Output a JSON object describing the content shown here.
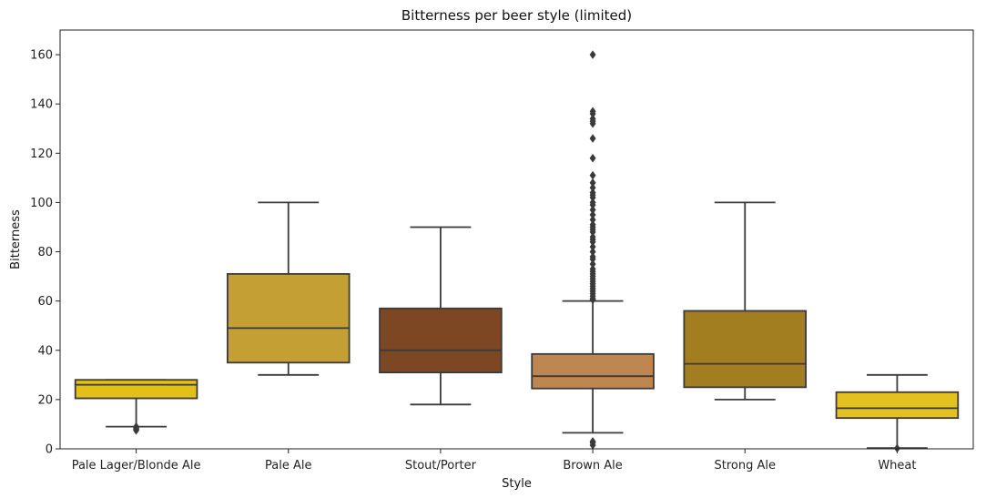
{
  "chart_data": {
    "type": "box",
    "title": "Bitterness per beer style (limited)",
    "xlabel": "Style",
    "ylabel": "Bitterness",
    "ylim": [
      0,
      170
    ],
    "yticks": [
      0,
      20,
      40,
      60,
      80,
      100,
      120,
      140,
      160
    ],
    "grid": false,
    "categories": [
      "Pale Lager/Blonde Ale",
      "Pale Ale",
      "Stout/Porter",
      "Brown Ale",
      "Strong Ale",
      "Wheat"
    ],
    "boxes": [
      {
        "category": "Pale Lager/Blonde Ale",
        "color": "#E3C016",
        "whisker_low": 9,
        "q1": 20.5,
        "median": 26,
        "q3": 28,
        "whisker_high": 28,
        "outliers": [
          7.5,
          8,
          8.5,
          9
        ]
      },
      {
        "category": "Pale Ale",
        "color": "#C49F33",
        "whisker_low": 30,
        "q1": 35,
        "median": 49,
        "q3": 71,
        "whisker_high": 100,
        "outliers": []
      },
      {
        "category": "Stout/Porter",
        "color": "#7D4723",
        "whisker_low": 18,
        "q1": 31,
        "median": 40,
        "q3": 57,
        "whisker_high": 90,
        "outliers": []
      },
      {
        "category": "Brown Ale",
        "color": "#BE8650",
        "whisker_low": 6.5,
        "q1": 24.5,
        "median": 29.5,
        "q3": 38.5,
        "whisker_high": 60,
        "outliers": [
          1.5,
          2.5,
          3,
          60.5,
          61,
          62,
          63,
          64,
          65,
          66,
          67,
          68,
          69,
          70,
          71,
          72,
          73,
          75,
          77,
          78,
          80,
          82,
          84,
          85,
          86,
          88,
          89,
          90,
          91,
          93,
          95,
          97,
          99,
          100,
          102,
          103,
          104,
          106,
          108,
          111,
          118,
          126,
          132,
          133,
          134,
          136,
          137,
          160
        ]
      },
      {
        "category": "Strong Ale",
        "color": "#A27E21",
        "whisker_low": 20,
        "q1": 25,
        "median": 34.5,
        "q3": 56,
        "whisker_high": 100,
        "outliers": []
      },
      {
        "category": "Wheat",
        "color": "#E3C11F",
        "whisker_low": 0.3,
        "q1": 12.5,
        "median": 16.5,
        "q3": 23,
        "whisker_high": 30,
        "outliers": [
          0.2
        ]
      }
    ]
  }
}
